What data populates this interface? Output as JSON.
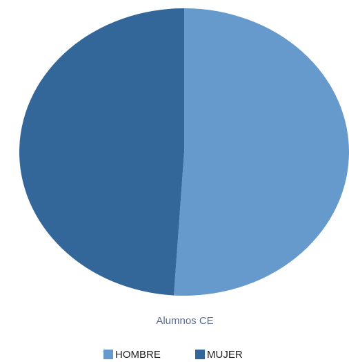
{
  "chart_data": {
    "type": "pie",
    "title": "Alumnos CE",
    "categories": [
      "HOMBRE",
      "MUJER"
    ],
    "values": [
      51,
      49
    ],
    "colors": [
      "#6699cc",
      "#336699"
    ],
    "legend": "bottom"
  }
}
